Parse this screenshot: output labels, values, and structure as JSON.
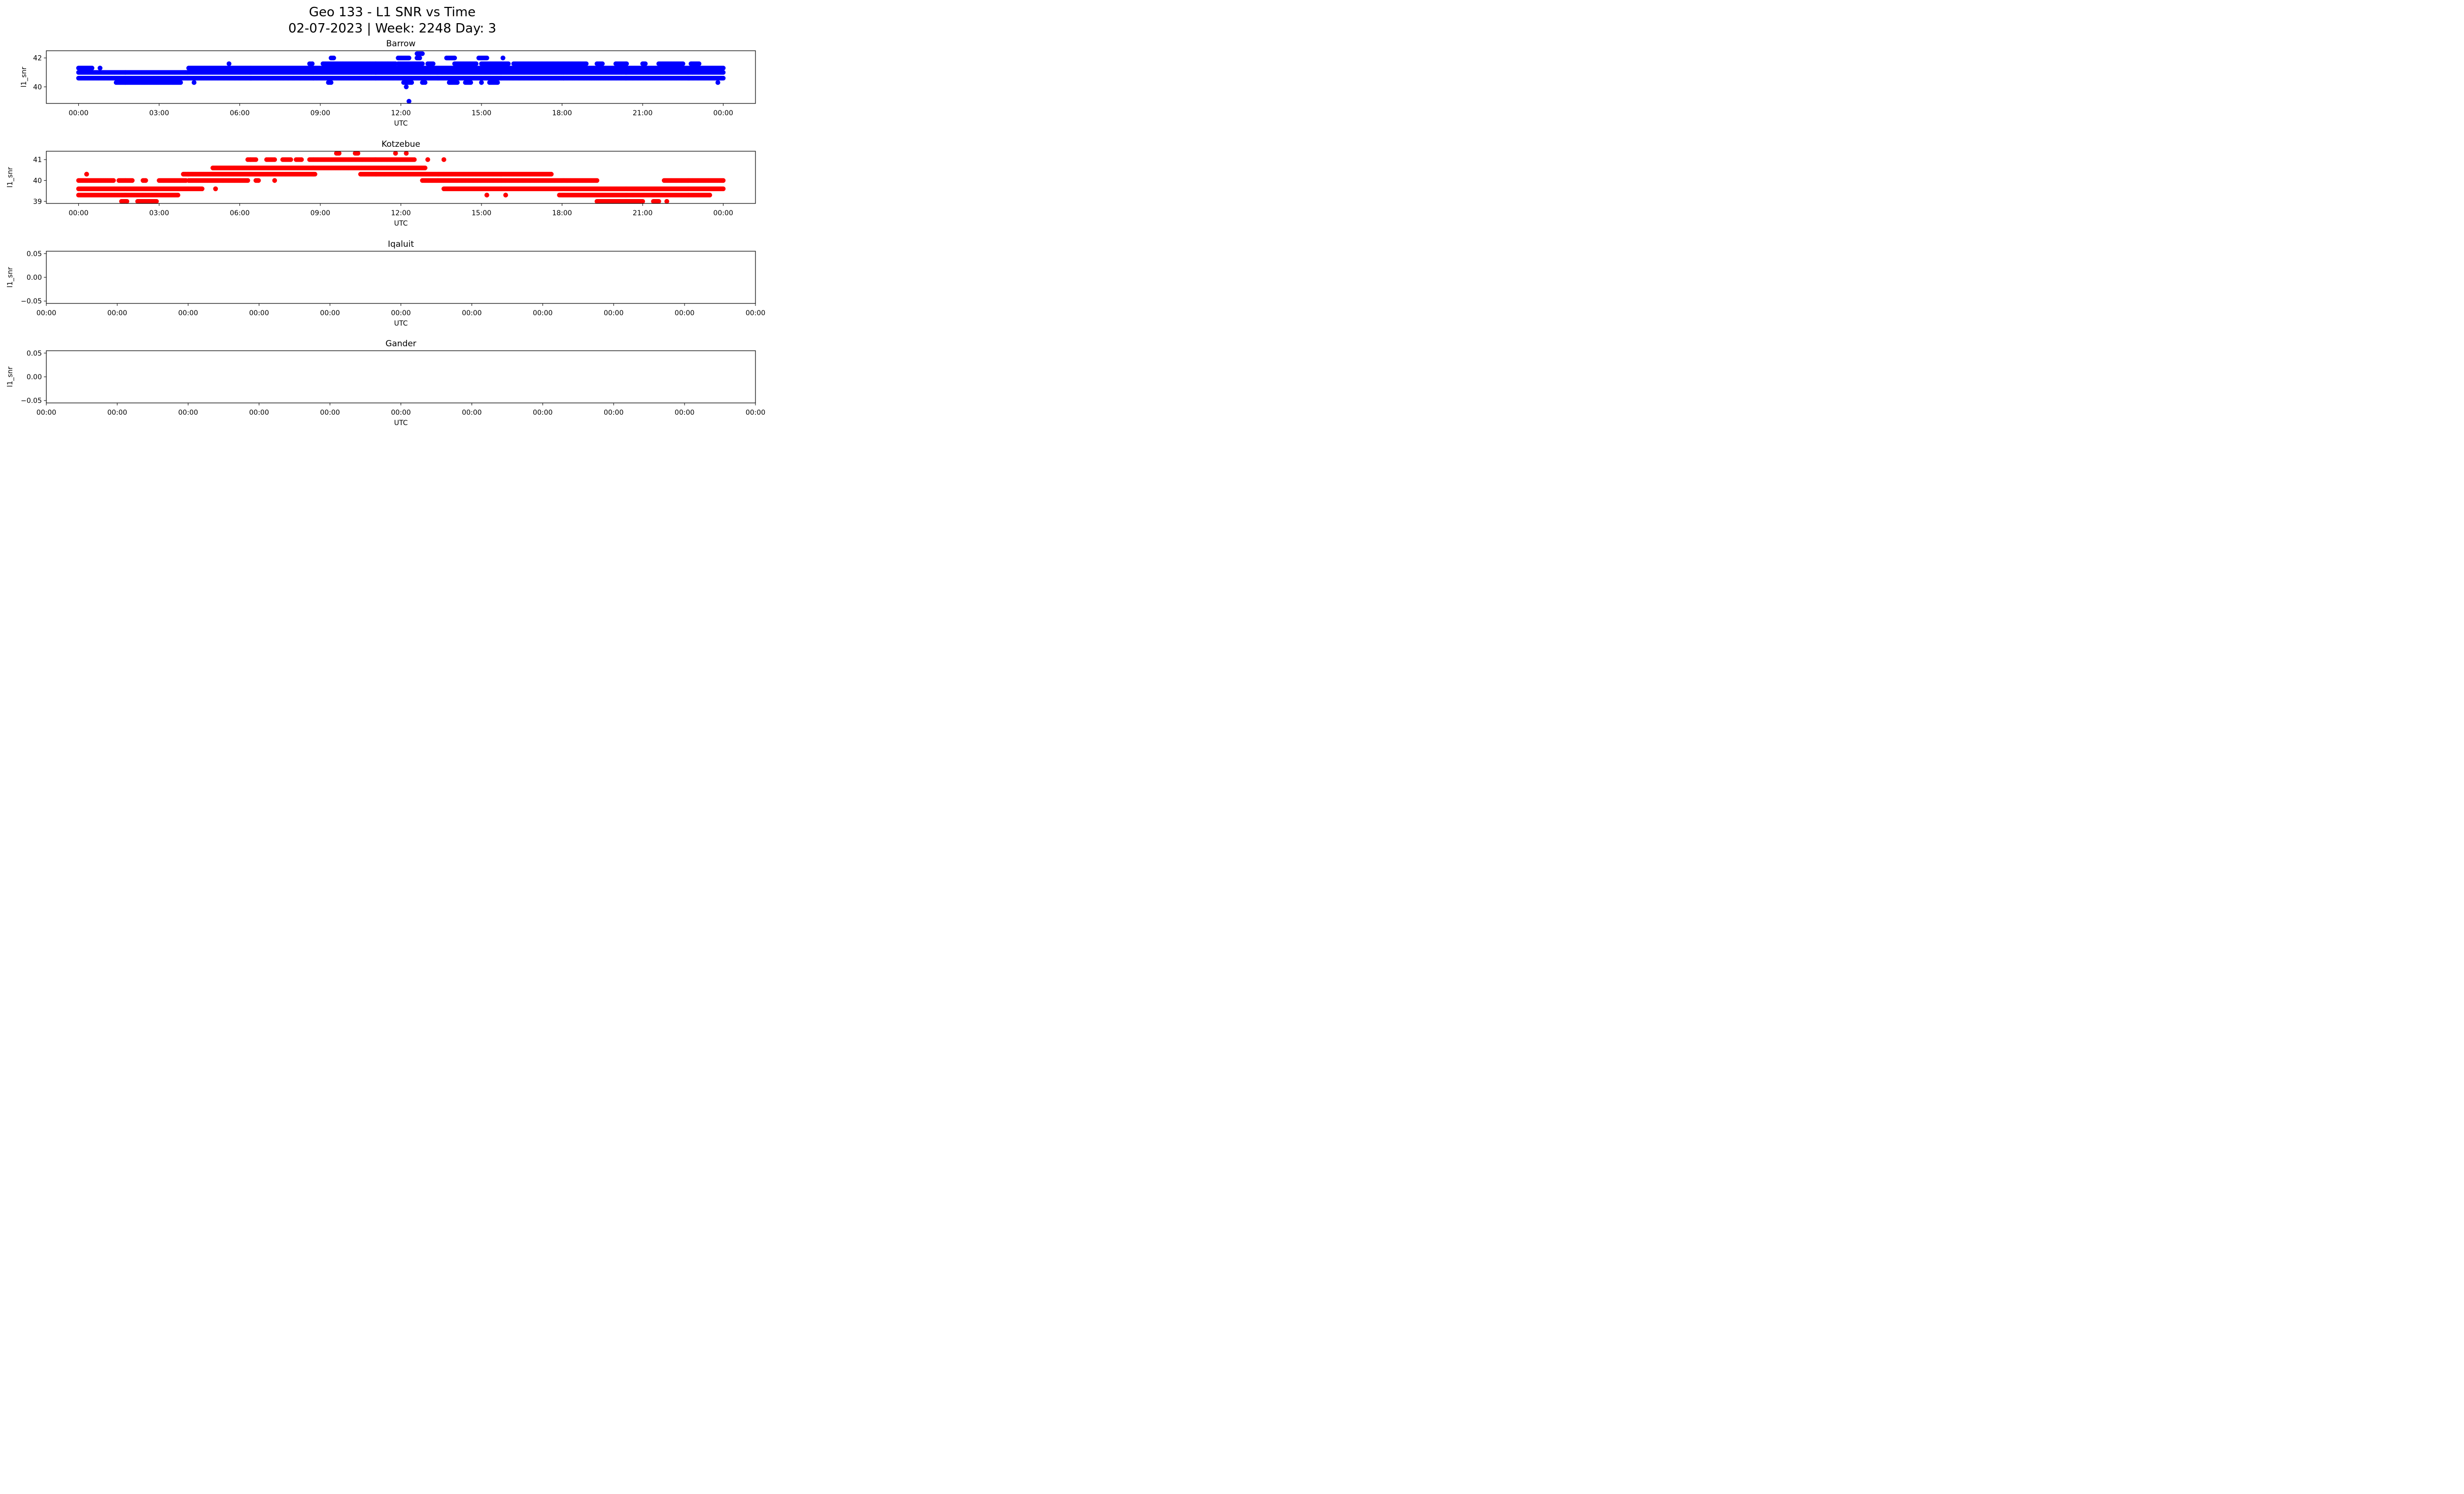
{
  "title_line1": "Geo 133 - L1 SNR vs Time",
  "title_line2": "02-07-2023 | Week: 2248 Day: 3",
  "chart_data": [
    {
      "type": "scatter",
      "title": "Barrow",
      "xlabel": "UTC",
      "ylabel": "l1_snr",
      "color": "#0000ff",
      "x_unit": "hours UTC",
      "xlim": [
        -1.2,
        25.2
      ],
      "ylim": [
        38.85,
        42.5
      ],
      "xticks": [
        0,
        3,
        6,
        9,
        12,
        15,
        18,
        21,
        24
      ],
      "xtick_labels": [
        "00:00",
        "03:00",
        "06:00",
        "09:00",
        "12:00",
        "15:00",
        "18:00",
        "21:00",
        "00:00"
      ],
      "yticks": [
        40,
        42
      ],
      "ytick_labels": [
        "40",
        "42"
      ],
      "levels": [
        {
          "y": 41.3,
          "ranges": [
            [
              0,
              0.5
            ],
            [
              0.8,
              0.8
            ],
            [
              4.1,
              24
            ]
          ]
        },
        {
          "y": 41.0,
          "ranges": [
            [
              0,
              24
            ]
          ]
        },
        {
          "y": 40.6,
          "ranges": [
            [
              0,
              24
            ]
          ]
        },
        {
          "y": 40.3,
          "ranges": [
            [
              1.4,
              3.8
            ],
            [
              4.3,
              4.3
            ]
          ]
        },
        {
          "y": 41.6,
          "ranges": [
            [
              5.6,
              5.6
            ],
            [
              8.6,
              8.7
            ],
            [
              9.1,
              11.8
            ],
            [
              11.9,
              12.8
            ],
            [
              13.0,
              13.2
            ],
            [
              14.0,
              14.8
            ],
            [
              15.0,
              16.0
            ],
            [
              16.2,
              18.9
            ],
            [
              19.3,
              19.5
            ],
            [
              20.0,
              20.4
            ],
            [
              21.0,
              21.1
            ],
            [
              21.6,
              22.5
            ],
            [
              22.8,
              23.1
            ]
          ]
        },
        {
          "y": 42.0,
          "ranges": [
            [
              9.4,
              9.5
            ],
            [
              11.9,
              12.3
            ],
            [
              12.6,
              12.7
            ],
            [
              13.7,
              14.0
            ],
            [
              14.9,
              15.2
            ],
            [
              15.8,
              15.8
            ]
          ]
        },
        {
          "y": 42.3,
          "ranges": [
            [
              12.6,
              12.8
            ]
          ]
        },
        {
          "y": 40.3,
          "ranges": [
            [
              9.3,
              9.4
            ],
            [
              12.1,
              12.4
            ],
            [
              12.8,
              12.9
            ],
            [
              13.8,
              14.1
            ],
            [
              14.4,
              14.6
            ],
            [
              15.0,
              15.0
            ],
            [
              15.3,
              15.6
            ],
            [
              23.8,
              23.8
            ]
          ]
        },
        {
          "y": 40.0,
          "ranges": [
            [
              12.2,
              12.2
            ]
          ]
        },
        {
          "y": 39.0,
          "ranges": [
            [
              12.3,
              12.3
            ]
          ]
        }
      ]
    },
    {
      "type": "scatter",
      "title": "Kotzebue",
      "xlabel": "UTC",
      "ylabel": "l1_snr",
      "color": "#ff0000",
      "x_unit": "hours UTC",
      "xlim": [
        -1.2,
        25.2
      ],
      "ylim": [
        38.9,
        41.4
      ],
      "xticks": [
        0,
        3,
        6,
        9,
        12,
        15,
        18,
        21,
        24
      ],
      "xtick_labels": [
        "00:00",
        "03:00",
        "06:00",
        "09:00",
        "12:00",
        "15:00",
        "18:00",
        "21:00",
        "00:00"
      ],
      "yticks": [
        39,
        40,
        41
      ],
      "ytick_labels": [
        "39",
        "40",
        "41"
      ],
      "levels": [
        {
          "y": 40.0,
          "ranges": [
            [
              0,
              1.3
            ],
            [
              1.5,
              2.0
            ],
            [
              2.4,
              2.5
            ],
            [
              3.0,
              4.0
            ],
            [
              4.1,
              6.3
            ],
            [
              6.6,
              6.7
            ],
            [
              7.3,
              7.3
            ],
            [
              12.8,
              19.3
            ],
            [
              21.8,
              24
            ]
          ]
        },
        {
          "y": 39.6,
          "ranges": [
            [
              0,
              4.6
            ],
            [
              5.1,
              5.1
            ],
            [
              13.6,
              24
            ]
          ]
        },
        {
          "y": 39.3,
          "ranges": [
            [
              0,
              3.7
            ],
            [
              15.2,
              15.2
            ],
            [
              15.9,
              15.9
            ],
            [
              17.9,
              23.5
            ]
          ]
        },
        {
          "y": 40.3,
          "ranges": [
            [
              0.3,
              0.3
            ],
            [
              3.9,
              8.8
            ],
            [
              10.5,
              17.6
            ]
          ]
        },
        {
          "y": 40.6,
          "ranges": [
            [
              5.0,
              12.9
            ]
          ]
        },
        {
          "y": 41.0,
          "ranges": [
            [
              6.3,
              6.6
            ],
            [
              7.0,
              7.3
            ],
            [
              7.6,
              7.9
            ],
            [
              8.1,
              8.3
            ],
            [
              8.6,
              12.5
            ],
            [
              13.0,
              13.0
            ],
            [
              13.6,
              13.6
            ]
          ]
        },
        {
          "y": 41.3,
          "ranges": [
            [
              9.6,
              9.7
            ],
            [
              10.3,
              10.4
            ],
            [
              11.8,
              11.8
            ],
            [
              12.2,
              12.2
            ]
          ]
        },
        {
          "y": 39.0,
          "ranges": [
            [
              1.6,
              1.8
            ],
            [
              2.2,
              2.9
            ],
            [
              19.3,
              21.0
            ],
            [
              21.4,
              21.6
            ],
            [
              21.9,
              21.9
            ]
          ]
        }
      ]
    },
    {
      "type": "scatter",
      "title": "Iqaluit",
      "xlabel": "UTC",
      "ylabel": "l1_snr",
      "color": "#0000ff",
      "ylim": [
        -0.055,
        0.055
      ],
      "yticks": [
        -0.05,
        0.0,
        0.05
      ],
      "ytick_labels": [
        "−0.05",
        "0.00",
        "0.05"
      ],
      "xtick_labels": [
        "00:00",
        "00:00",
        "00:00",
        "00:00",
        "00:00",
        "00:00",
        "00:00",
        "00:00",
        "00:00",
        "00:00",
        "00:00"
      ],
      "levels": []
    },
    {
      "type": "scatter",
      "title": "Gander",
      "xlabel": "UTC",
      "ylabel": "l1_snr",
      "color": "#0000ff",
      "ylim": [
        -0.055,
        0.055
      ],
      "yticks": [
        -0.05,
        0.0,
        0.05
      ],
      "ytick_labels": [
        "−0.05",
        "0.00",
        "0.05"
      ],
      "xtick_labels": [
        "00:00",
        "00:00",
        "00:00",
        "00:00",
        "00:00",
        "00:00",
        "00:00",
        "00:00",
        "00:00",
        "00:00",
        "00:00"
      ],
      "levels": []
    }
  ]
}
